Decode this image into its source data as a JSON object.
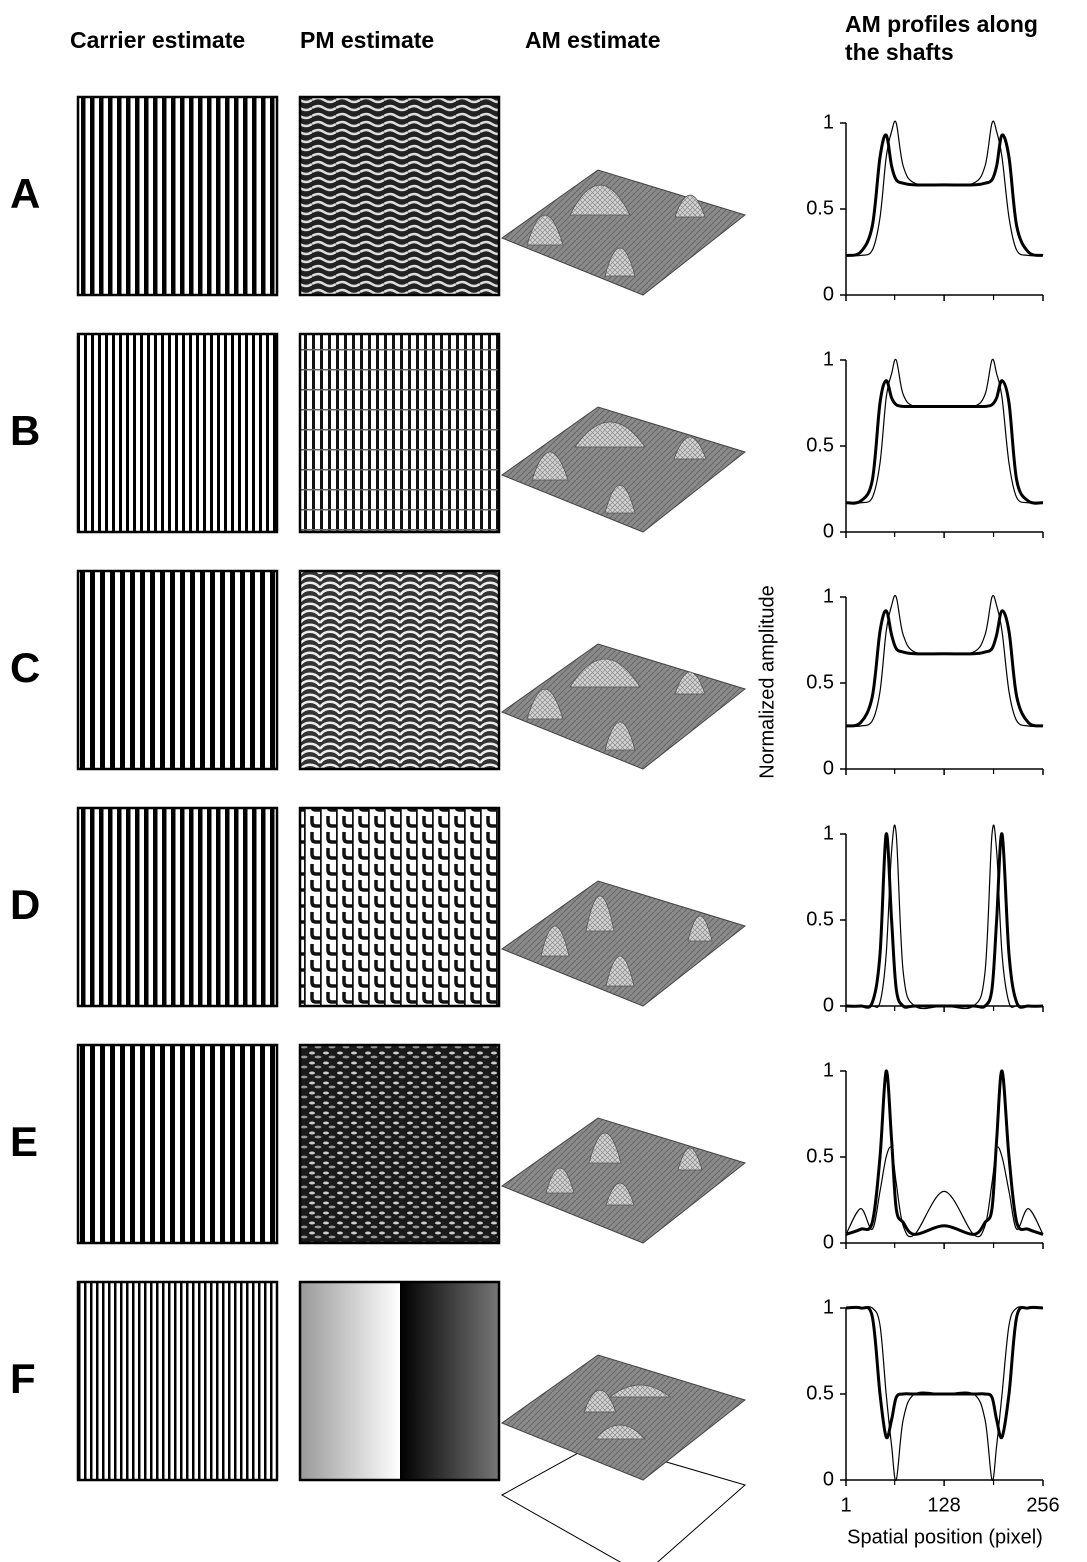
{
  "column_headers": [
    "Carrier estimate",
    "PM estimate",
    "AM estimate",
    [
      "AM profiles along",
      "the shafts"
    ]
  ],
  "ylabel": "Normalized amplitude",
  "chart_data": [
    {
      "type": "line",
      "label": "A",
      "x": [
        1,
        20,
        35,
        45,
        53,
        60,
        66,
        75,
        90,
        128,
        166,
        181,
        190,
        196,
        203,
        212,
        222,
        237,
        256
      ],
      "xlim": [
        1,
        256
      ],
      "xticks": [
        1,
        128,
        256
      ],
      "xminor": [
        64,
        192
      ],
      "show_xtick_labels": false,
      "ylim": [
        0,
        1
      ],
      "yticks": [
        0,
        0.5,
        1
      ],
      "series": [
        {
          "color": "#000000",
          "line_width": 3,
          "values": [
            0.23,
            0.25,
            0.4,
            0.8,
            0.93,
            0.75,
            0.67,
            0.65,
            0.64,
            0.64,
            0.64,
            0.65,
            0.67,
            0.75,
            0.93,
            0.8,
            0.4,
            0.25,
            0.23
          ]
        },
        {
          "color": "#000000",
          "line_width": 1.2,
          "values": [
            0.23,
            0.23,
            0.26,
            0.45,
            0.8,
            0.95,
            1.0,
            0.75,
            0.65,
            0.64,
            0.65,
            0.75,
            1.0,
            0.95,
            0.8,
            0.45,
            0.26,
            0.23,
            0.23
          ]
        }
      ]
    },
    {
      "type": "line",
      "label": "B",
      "x": [
        1,
        20,
        35,
        45,
        53,
        60,
        66,
        75,
        90,
        128,
        166,
        181,
        190,
        196,
        203,
        212,
        222,
        237,
        256
      ],
      "xlim": [
        1,
        256
      ],
      "xticks": [
        1,
        128,
        256
      ],
      "xminor": [
        64,
        192
      ],
      "show_xtick_labels": false,
      "ylim": [
        0,
        1
      ],
      "yticks": [
        0,
        0.5,
        1
      ],
      "series": [
        {
          "color": "#000000",
          "line_width": 3,
          "values": [
            0.17,
            0.18,
            0.3,
            0.75,
            0.88,
            0.78,
            0.74,
            0.73,
            0.73,
            0.73,
            0.73,
            0.73,
            0.74,
            0.78,
            0.88,
            0.75,
            0.3,
            0.18,
            0.17
          ]
        },
        {
          "color": "#000000",
          "line_width": 1.2,
          "values": [
            0.17,
            0.17,
            0.2,
            0.4,
            0.78,
            0.92,
            1.0,
            0.8,
            0.73,
            0.73,
            0.73,
            0.8,
            1.0,
            0.92,
            0.78,
            0.4,
            0.2,
            0.17,
            0.17
          ]
        }
      ]
    },
    {
      "type": "line",
      "label": "C",
      "x": [
        1,
        20,
        35,
        45,
        53,
        60,
        66,
        75,
        90,
        128,
        166,
        181,
        190,
        196,
        203,
        212,
        222,
        237,
        256
      ],
      "xlim": [
        1,
        256
      ],
      "xticks": [
        1,
        128,
        256
      ],
      "xminor": [
        64,
        192
      ],
      "show_xtick_labels": false,
      "ylim": [
        0,
        1
      ],
      "yticks": [
        0,
        0.5,
        1
      ],
      "series": [
        {
          "color": "#000000",
          "line_width": 3,
          "values": [
            0.25,
            0.27,
            0.42,
            0.8,
            0.92,
            0.78,
            0.7,
            0.68,
            0.67,
            0.67,
            0.67,
            0.68,
            0.7,
            0.78,
            0.92,
            0.8,
            0.42,
            0.27,
            0.25
          ]
        },
        {
          "color": "#000000",
          "line_width": 1.2,
          "values": [
            0.25,
            0.25,
            0.28,
            0.45,
            0.8,
            0.95,
            1.0,
            0.78,
            0.68,
            0.67,
            0.68,
            0.78,
            1.0,
            0.95,
            0.8,
            0.45,
            0.28,
            0.25,
            0.25
          ]
        }
      ]
    },
    {
      "type": "line",
      "label": "D",
      "x": [
        1,
        20,
        35,
        45,
        53,
        60,
        66,
        75,
        90,
        128,
        166,
        181,
        190,
        196,
        203,
        212,
        222,
        237,
        256
      ],
      "xlim": [
        1,
        256
      ],
      "xticks": [
        1,
        128,
        256
      ],
      "xminor": [
        64,
        192
      ],
      "show_xtick_labels": false,
      "ylim": [
        0,
        1
      ],
      "yticks": [
        0,
        0.5,
        1
      ],
      "series": [
        {
          "color": "#000000",
          "line_width": 3,
          "values": [
            0,
            0,
            0.02,
            0.3,
            1.0,
            0.5,
            0.1,
            0,
            0,
            0,
            0,
            0,
            0.1,
            0.5,
            1.0,
            0.3,
            0.02,
            0,
            0
          ]
        },
        {
          "color": "#000000",
          "line_width": 1.2,
          "values": [
            0,
            0,
            0,
            0.02,
            0.3,
            0.9,
            1.0,
            0.2,
            0,
            0,
            0,
            0.2,
            1.0,
            0.9,
            0.3,
            0.02,
            0,
            0,
            0
          ]
        }
      ]
    },
    {
      "type": "line",
      "label": "E",
      "x": [
        1,
        20,
        35,
        45,
        53,
        60,
        66,
        75,
        90,
        128,
        166,
        181,
        190,
        196,
        203,
        212,
        222,
        237,
        256
      ],
      "xlim": [
        1,
        256
      ],
      "xticks": [
        1,
        128,
        256
      ],
      "xminor": [
        64,
        192
      ],
      "show_xtick_labels": false,
      "ylim": [
        0,
        1
      ],
      "yticks": [
        0,
        0.5,
        1
      ],
      "series": [
        {
          "color": "#000000",
          "line_width": 3,
          "values": [
            0.05,
            0.08,
            0.12,
            0.5,
            1.0,
            0.6,
            0.2,
            0.12,
            0.05,
            0.1,
            0.05,
            0.12,
            0.2,
            0.6,
            1.0,
            0.5,
            0.12,
            0.08,
            0.05
          ]
        },
        {
          "color": "#000000",
          "line_width": 1.2,
          "values": [
            0.05,
            0.2,
            0.08,
            0.3,
            0.5,
            0.55,
            0.35,
            0.1,
            0.05,
            0.3,
            0.05,
            0.1,
            0.35,
            0.55,
            0.5,
            0.3,
            0.08,
            0.2,
            0.05
          ]
        }
      ]
    },
    {
      "type": "line",
      "label": "F",
      "x": [
        1,
        20,
        35,
        45,
        53,
        60,
        66,
        75,
        90,
        128,
        166,
        181,
        190,
        196,
        203,
        212,
        222,
        237,
        256
      ],
      "xlim": [
        1,
        256
      ],
      "xticks": [
        1,
        128,
        256
      ],
      "xminor": [
        64,
        192
      ],
      "show_xtick_labels": true,
      "xlabel": "Spatial position (pixel)",
      "ylim": [
        0,
        1
      ],
      "yticks": [
        0,
        0.5,
        1
      ],
      "series": [
        {
          "color": "#000000",
          "line_width": 3,
          "values": [
            1,
            1,
            0.95,
            0.5,
            0.25,
            0.35,
            0.48,
            0.5,
            0.5,
            0.5,
            0.5,
            0.5,
            0.48,
            0.35,
            0.25,
            0.5,
            0.95,
            1,
            1
          ]
        },
        {
          "color": "#000000",
          "line_width": 1.2,
          "values": [
            1,
            1,
            1,
            0.9,
            0.5,
            0.2,
            0.0,
            0.35,
            0.5,
            0.5,
            0.5,
            0.35,
            0.0,
            0.2,
            0.5,
            0.9,
            1,
            1,
            1
          ]
        }
      ]
    }
  ]
}
